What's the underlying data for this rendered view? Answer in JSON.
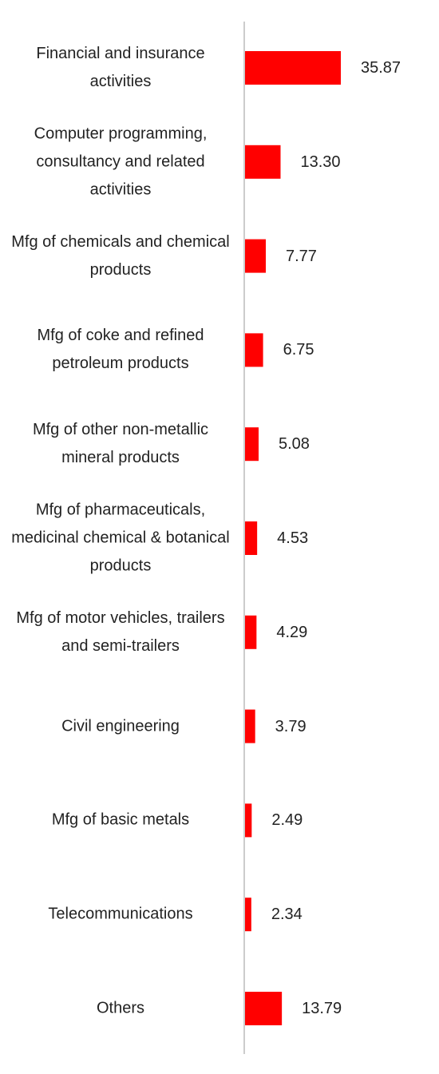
{
  "chart_data": {
    "type": "bar",
    "orientation": "horizontal",
    "categories": [
      "Financial and insurance activities",
      "Computer programming, consultancy and related activities",
      "Mfg of chemicals and chemical products",
      "Mfg of coke and refined petroleum products",
      "Mfg of other non-metallic mineral products",
      "Mfg of pharmaceuticals, medicinal chemical & botanical products",
      "Mfg of motor vehicles, trailers and semi-trailers",
      "Civil engineering",
      "Mfg of basic metals",
      "Telecommunications",
      "Others"
    ],
    "values": [
      35.87,
      13.3,
      7.77,
      6.75,
      5.08,
      4.53,
      4.29,
      3.79,
      2.49,
      2.34,
      13.79
    ],
    "value_labels": [
      "35.87",
      "13.30",
      "7.77",
      "6.75",
      "5.08",
      "4.53",
      "4.29",
      "3.79",
      "2.49",
      "2.34",
      "13.79"
    ],
    "color": "#ff0000"
  }
}
